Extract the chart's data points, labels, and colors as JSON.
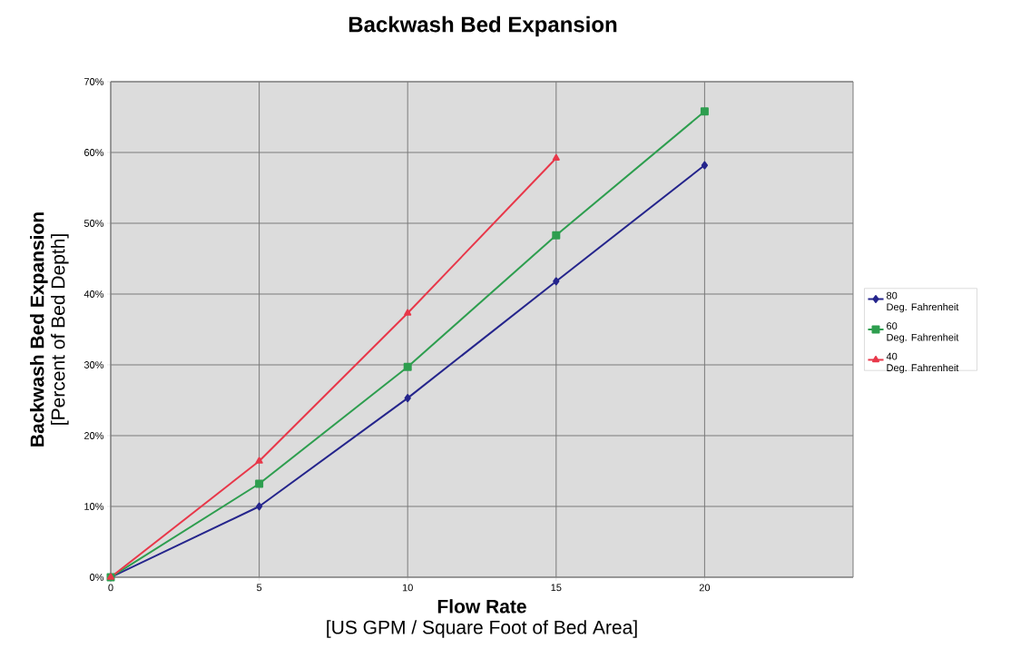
{
  "chart_data": {
    "type": "line",
    "title": "Backwash Bed Expansion",
    "xlabel": "**Flow Rate** [US GPM / Square Foot of Bed Area]",
    "ylabel": "**Backwash Bed Expansion** [Percent of Bed Depth]",
    "x": [
      0,
      5,
      10,
      15,
      20
    ],
    "series": [
      {
        "name": "80 Deg. Fahrenheit",
        "color": "#25258c",
        "marker": "diamond",
        "values": [
          0,
          10,
          25.3,
          41.8,
          58.2
        ]
      },
      {
        "name": "60 Deg. Fahrenheit",
        "color": "#2e9e4f",
        "marker": "square",
        "values": [
          0,
          13.2,
          29.7,
          48.3,
          65.8
        ]
      },
      {
        "name": "40 Deg. Fahrenheit",
        "color": "#e8384a",
        "marker": "triangle",
        "x": [
          0,
          5,
          10,
          15
        ],
        "values": [
          0,
          16.4,
          37.3,
          59.2
        ]
      }
    ],
    "xlim": [
      0,
      25
    ],
    "xticks": [
      0,
      5,
      10,
      15,
      20
    ],
    "ylim": [
      0,
      70
    ],
    "yticks": [
      {
        "value": 0,
        "label": "0%"
      },
      {
        "value": 10,
        "label": "10%"
      },
      {
        "value": 20,
        "label": "20%"
      },
      {
        "value": 30,
        "label": "30%"
      },
      {
        "value": 40,
        "label": "40%"
      },
      {
        "value": 50,
        "label": "50%"
      },
      {
        "value": 60,
        "label": "60%"
      },
      {
        "value": 70,
        "label": "70%"
      }
    ],
    "grid": true,
    "legend": "right",
    "line_style": "solid"
  }
}
